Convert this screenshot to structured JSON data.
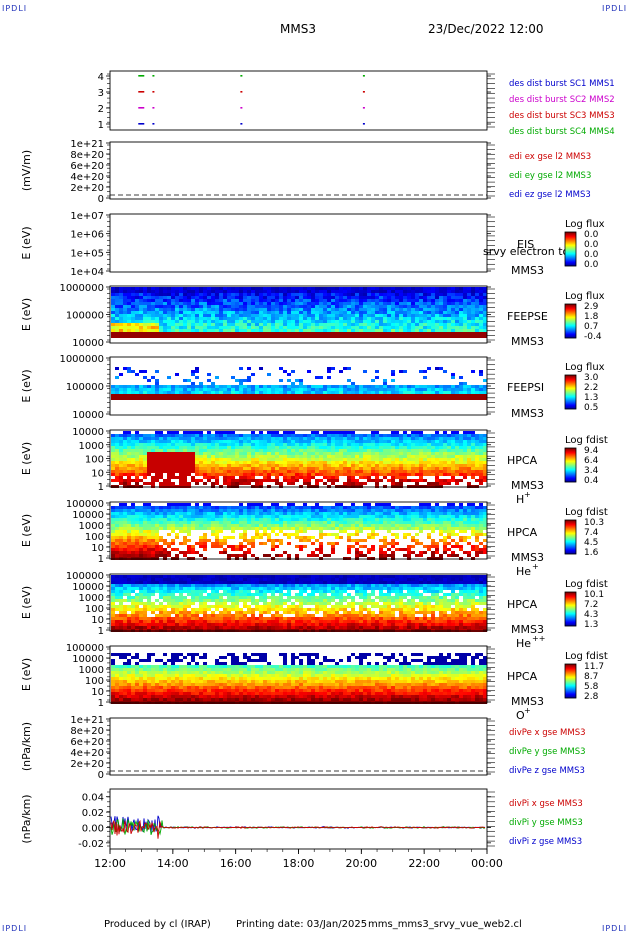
{
  "header": {
    "mission": "MMS3",
    "datetime": "23/Dec/2022 12:00",
    "corner_label": "IPDLI"
  },
  "footer": {
    "produced": "Produced by cl (IRAP)",
    "printing": "Printing date: 03/Jan/2025",
    "file": "mms_mms3_srvy_vue_web2.cl"
  },
  "time_axis": {
    "ticks": [
      "12:00",
      "14:00",
      "16:00",
      "18:00",
      "20:00",
      "22:00",
      "00:00"
    ]
  },
  "chart_data": [
    {
      "type": "scatter",
      "id": "burst",
      "ylabel": "",
      "yticks": [
        "4",
        "3",
        "2",
        "1"
      ],
      "legend": [
        {
          "text": "des dist burst SC1 MMS1",
          "color": "#0000cc"
        },
        {
          "text": "des dist burst SC2 MMS2",
          "color": "#cc00cc"
        },
        {
          "text": "des dist burst SC3 MMS3",
          "color": "#cc0000"
        },
        {
          "text": "des dist burst SC4 MMS4",
          "color": "#00aa00"
        }
      ],
      "series": [
        {
          "spacecraft": 4,
          "color": "#00aa00",
          "x_hours": [
            12.9,
            13.35,
            16.15,
            20.05
          ]
        },
        {
          "spacecraft": 3,
          "color": "#cc0000",
          "x_hours": [
            12.9,
            13.35,
            16.15,
            20.05
          ]
        },
        {
          "spacecraft": 2,
          "color": "#cc00cc",
          "x_hours": [
            12.9,
            13.35,
            16.15,
            20.05
          ]
        },
        {
          "spacecraft": 1,
          "color": "#0000cc",
          "x_hours": [
            12.9,
            13.35,
            16.15,
            20.05
          ]
        }
      ]
    },
    {
      "type": "line",
      "id": "edi",
      "ylabel": "(mV/m)",
      "yticks": [
        "1e+21",
        "8e+20",
        "6e+20",
        "4e+20",
        "2e+20",
        "0"
      ],
      "legend": [
        {
          "text": "edi ex gse l2 MMS3",
          "color": "#cc0000"
        },
        {
          "text": "edi ey gse l2 MMS3",
          "color": "#00aa00"
        },
        {
          "text": "edi ez gse l2 MMS3",
          "color": "#0000cc"
        }
      ],
      "zero_line": true
    },
    {
      "type": "heatmap",
      "id": "eis",
      "ylabel": "E (eV)",
      "yticks": [
        "1e+07",
        "1e+06",
        "1e+05",
        "1e+04"
      ],
      "label1": "EIS",
      "label2": "MMS3",
      "overlay_text": "srvy electron tof",
      "cb_title": "Log flux",
      "cb_values": [
        "0.0",
        "0.0",
        "0.0",
        "0.0"
      ],
      "profile": "empty"
    },
    {
      "type": "heatmap",
      "id": "feepse",
      "ylabel": "E (eV)",
      "yticks": [
        "1000000",
        "100000",
        "10000"
      ],
      "label1": "FEEPSE",
      "label2": "MMS3",
      "cb_title": "Log flux",
      "cb_values": [
        "2.9",
        "1.8",
        "0.7",
        "-0.4"
      ],
      "profile": "feepse"
    },
    {
      "type": "heatmap",
      "id": "feepsi",
      "ylabel": "E (eV)",
      "yticks": [
        "1000000",
        "100000",
        "10000"
      ],
      "label1": "FEEPSI",
      "label2": "MMS3",
      "cb_title": "Log flux",
      "cb_values": [
        "3.0",
        "2.2",
        "1.3",
        "0.5"
      ],
      "profile": "feepsi"
    },
    {
      "type": "heatmap",
      "id": "hpca_h",
      "ylabel": "E (eV)",
      "yticks": [
        "10000",
        "1000",
        "100",
        "10",
        "1"
      ],
      "label1": "HPCA",
      "label2": "MMS3",
      "species": "H",
      "charge": "+",
      "cb_title": "Log fdist",
      "cb_values": [
        "9.4",
        "6.4",
        "3.4",
        "0.4"
      ],
      "profile": "hpca_h"
    },
    {
      "type": "heatmap",
      "id": "hpca_he",
      "ylabel": "E (eV)",
      "yticks": [
        "100000",
        "10000",
        "1000",
        "100",
        "10",
        "1"
      ],
      "label1": "HPCA",
      "label2": "MMS3",
      "species": "He",
      "charge": "+",
      "cb_title": "Log fdist",
      "cb_values": [
        "10.3",
        "7.4",
        "4.5",
        "1.6"
      ],
      "profile": "hpca_he"
    },
    {
      "type": "heatmap",
      "id": "hpca_hepp",
      "ylabel": "E (eV)",
      "yticks": [
        "100000",
        "10000",
        "1000",
        "100",
        "10",
        "1"
      ],
      "label1": "HPCA",
      "label2": "MMS3",
      "species": "He",
      "charge": "++",
      "cb_title": "Log fdist",
      "cb_values": [
        "10.1",
        "7.2",
        "4.3",
        "1.3"
      ],
      "profile": "hpca_hepp"
    },
    {
      "type": "heatmap",
      "id": "hpca_o",
      "ylabel": "E (eV)",
      "yticks": [
        "100000",
        "10000",
        "1000",
        "100",
        "10",
        "1"
      ],
      "label1": "HPCA",
      "label2": "MMS3",
      "species": "O",
      "charge": "+",
      "cb_title": "Log fdist",
      "cb_values": [
        "11.7",
        "8.7",
        "5.8",
        "2.8"
      ],
      "profile": "hpca_o"
    },
    {
      "type": "line",
      "id": "divpe",
      "ylabel": "(nPa/km)",
      "yticks": [
        "1e+21",
        "8e+20",
        "6e+20",
        "4e+20",
        "2e+20",
        "0"
      ],
      "legend": [
        {
          "text": "divPe x gse MMS3",
          "color": "#cc0000"
        },
        {
          "text": "divPe y gse MMS3",
          "color": "#00aa00"
        },
        {
          "text": "divPe z gse MMS3",
          "color": "#0000cc"
        }
      ],
      "zero_line": true
    },
    {
      "type": "line",
      "id": "divpi",
      "ylabel": "(nPa/km)",
      "yticks": [
        "0.04",
        "0.02",
        "0.00",
        "-0.02"
      ],
      "yvalues": [
        0.04,
        0.02,
        0.0,
        -0.02
      ],
      "ylim": [
        -0.028,
        0.05
      ],
      "legend": [
        {
          "text": "divPi x gse MMS3",
          "color": "#cc0000"
        },
        {
          "text": "divPi y gse MMS3",
          "color": "#00aa00"
        },
        {
          "text": "divPi z gse MMS3",
          "color": "#0000cc"
        }
      ]
    }
  ]
}
